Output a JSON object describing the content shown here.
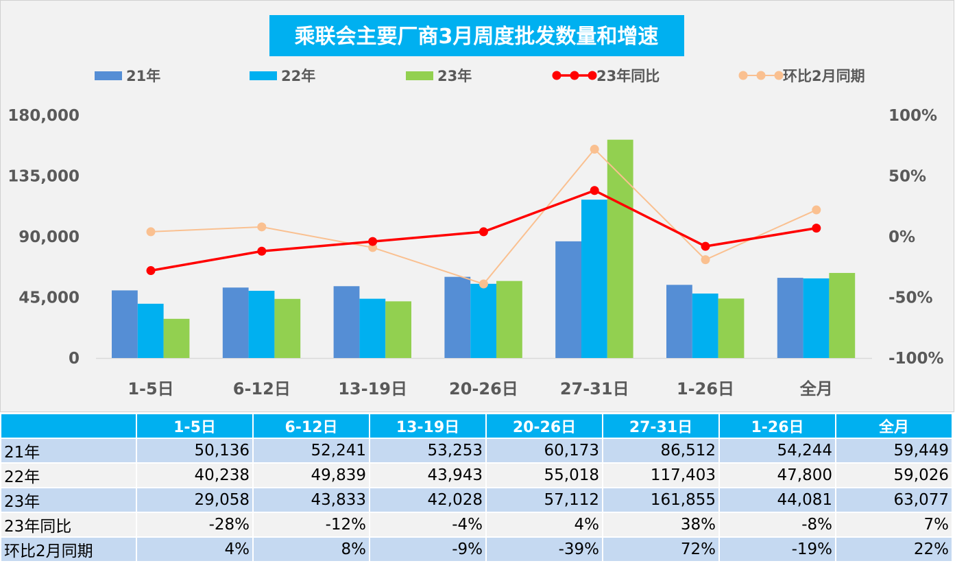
{
  "colors": {
    "y21": "#558ed5",
    "y22": "#00b0f0",
    "y23": "#92d050",
    "yoy": "#ff0000",
    "mom": "#fac090",
    "title_bg": "#00b0f0",
    "plot_bg": "#f2f2f2",
    "header_bg": "#00b0f0",
    "row_blue": "#c5d9f1",
    "row_gray": "#f2f2f2"
  },
  "chart_data": {
    "type": "bar",
    "title": "乘联会主要厂商3月周度批发数量和增速",
    "categories": [
      "1-5日",
      "6-12日",
      "13-19日",
      "20-26日",
      "27-31日",
      "1-26日",
      "全月"
    ],
    "series": [
      {
        "name": "21年",
        "type": "bar",
        "axis": "left",
        "values": [
          50136,
          52241,
          53253,
          60173,
          86512,
          54244,
          59449
        ]
      },
      {
        "name": "22年",
        "type": "bar",
        "axis": "left",
        "values": [
          40238,
          49839,
          43943,
          55018,
          117403,
          47800,
          59026
        ]
      },
      {
        "name": "23年",
        "type": "bar",
        "axis": "left",
        "values": [
          29058,
          43833,
          42028,
          57112,
          161855,
          44081,
          63077
        ]
      },
      {
        "name": "23年同比",
        "type": "line",
        "axis": "right",
        "values": [
          -28,
          -12,
          -4,
          4,
          38,
          -8,
          7
        ]
      },
      {
        "name": "环比2月同期",
        "type": "line",
        "axis": "right",
        "values": [
          4,
          8,
          -9,
          -39,
          72,
          -19,
          22
        ]
      }
    ],
    "y_left": {
      "ylim": [
        0,
        180000
      ],
      "ticks": [
        "0",
        "45,000",
        "90,000",
        "135,000",
        "180,000"
      ]
    },
    "y_right": {
      "ylim": [
        -100,
        100
      ],
      "ticks": [
        "-100%",
        "-50%",
        "0%",
        "50%",
        "100%"
      ]
    },
    "legend": "top",
    "grid": false
  },
  "table": {
    "header": [
      "",
      "1-5日",
      "6-12日",
      "13-19日",
      "20-26日",
      "27-31日",
      "1-26日",
      "全月"
    ],
    "rows": [
      {
        "label": "21年",
        "cells": [
          "50,136",
          "52,241",
          "53,253",
          "60,173",
          "86,512",
          "54,244",
          "59,449"
        ]
      },
      {
        "label": "22年",
        "cells": [
          "40,238",
          "49,839",
          "43,943",
          "55,018",
          "117,403",
          "47,800",
          "59,026"
        ]
      },
      {
        "label": "23年",
        "cells": [
          "29,058",
          "43,833",
          "42,028",
          "57,112",
          "161,855",
          "44,081",
          "63,077"
        ]
      },
      {
        "label": "23年同比",
        "cells": [
          "-28%",
          "-12%",
          "-4%",
          "4%",
          "38%",
          "-8%",
          "7%"
        ]
      },
      {
        "label": "环比2月同期",
        "cells": [
          "4%",
          "8%",
          "-9%",
          "-39%",
          "72%",
          "-19%",
          "22%"
        ]
      }
    ]
  }
}
